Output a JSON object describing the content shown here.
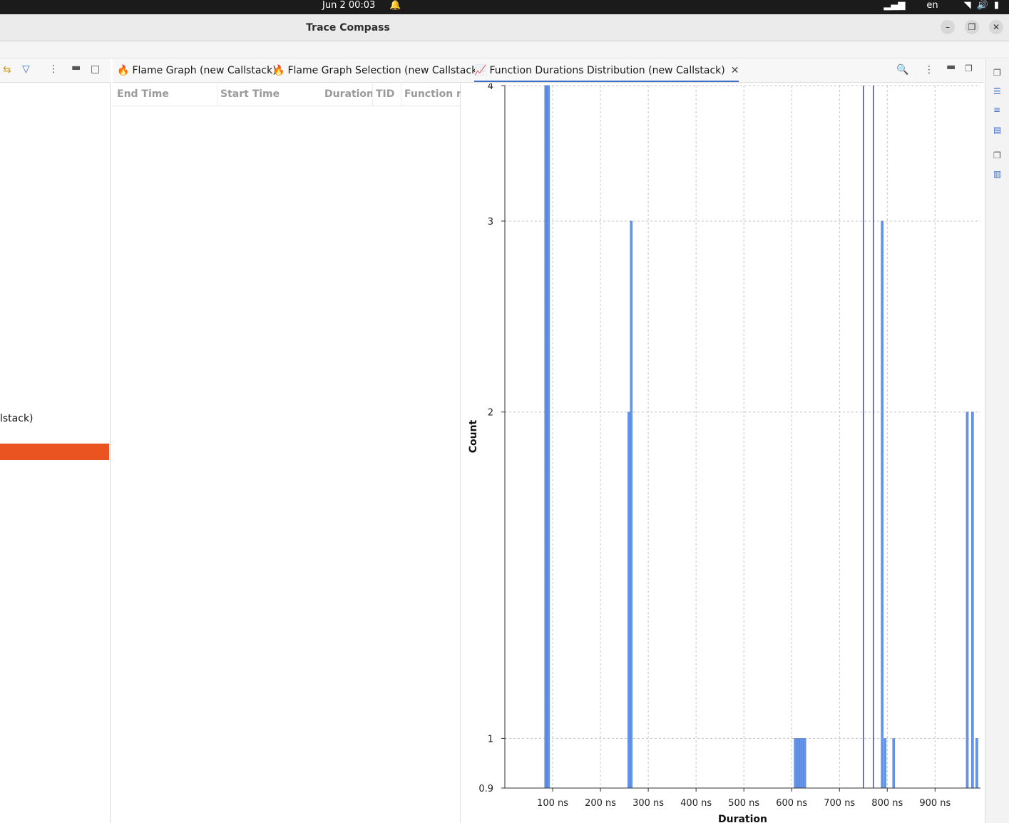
{
  "system_bar": {
    "clock": "Jun 2  00:03",
    "lang": "en"
  },
  "window": {
    "title": "Trace Compass"
  },
  "left_panel": {
    "partial_label": "lstack)"
  },
  "tabs": [
    {
      "label": "Flame Graph (new Callstack)"
    },
    {
      "label": "Flame Graph Selection (new Callstack)"
    },
    {
      "label": "Function Durations Distribution (new Callstack)"
    }
  ],
  "table": {
    "columns": [
      "End Time",
      "Start Time",
      "Duration",
      "TID",
      "Function na"
    ]
  },
  "chart_data": {
    "type": "bar",
    "xlabel": "Duration",
    "ylabel": "Count",
    "y_scale": "log",
    "ylim": [
      0.9,
      4
    ],
    "y_ticks": [
      {
        "value": 0.9,
        "label": "0.9"
      },
      {
        "value": 1,
        "label": "1"
      },
      {
        "value": 2,
        "label": "2"
      },
      {
        "value": 3,
        "label": "3"
      },
      {
        "value": 4,
        "label": "4"
      }
    ],
    "x_range_ns": [
      0,
      995
    ],
    "x_ticks": [
      {
        "value": 100,
        "label": "100 ns"
      },
      {
        "value": 200,
        "label": "200 ns"
      },
      {
        "value": 300,
        "label": "300 ns"
      },
      {
        "value": 400,
        "label": "400 ns"
      },
      {
        "value": 500,
        "label": "500 ns"
      },
      {
        "value": 600,
        "label": "600 ns"
      },
      {
        "value": 700,
        "label": "700 ns"
      },
      {
        "value": 800,
        "label": "800 ns"
      },
      {
        "value": 900,
        "label": "900 ns"
      }
    ],
    "bar_color": "#6495ed",
    "bars": [
      {
        "x": 83,
        "count": 4
      },
      {
        "x": 85,
        "count": 4
      },
      {
        "x": 87,
        "count": 4
      },
      {
        "x": 89,
        "count": 4
      },
      {
        "x": 257,
        "count": 2
      },
      {
        "x": 262,
        "count": 3
      },
      {
        "x": 605,
        "count": 1
      },
      {
        "x": 609,
        "count": 1
      },
      {
        "x": 613,
        "count": 1
      },
      {
        "x": 617,
        "count": 1
      },
      {
        "x": 621,
        "count": 1
      },
      {
        "x": 625,
        "count": 1
      },
      {
        "x": 787,
        "count": 3
      },
      {
        "x": 793,
        "count": 1
      },
      {
        "x": 811,
        "count": 1
      },
      {
        "x": 965,
        "count": 2
      },
      {
        "x": 976,
        "count": 2
      },
      {
        "x": 985,
        "count": 1
      }
    ],
    "selection_markers_ns": [
      750,
      771
    ],
    "marker_color": "#1a1aa8",
    "grid": true
  }
}
